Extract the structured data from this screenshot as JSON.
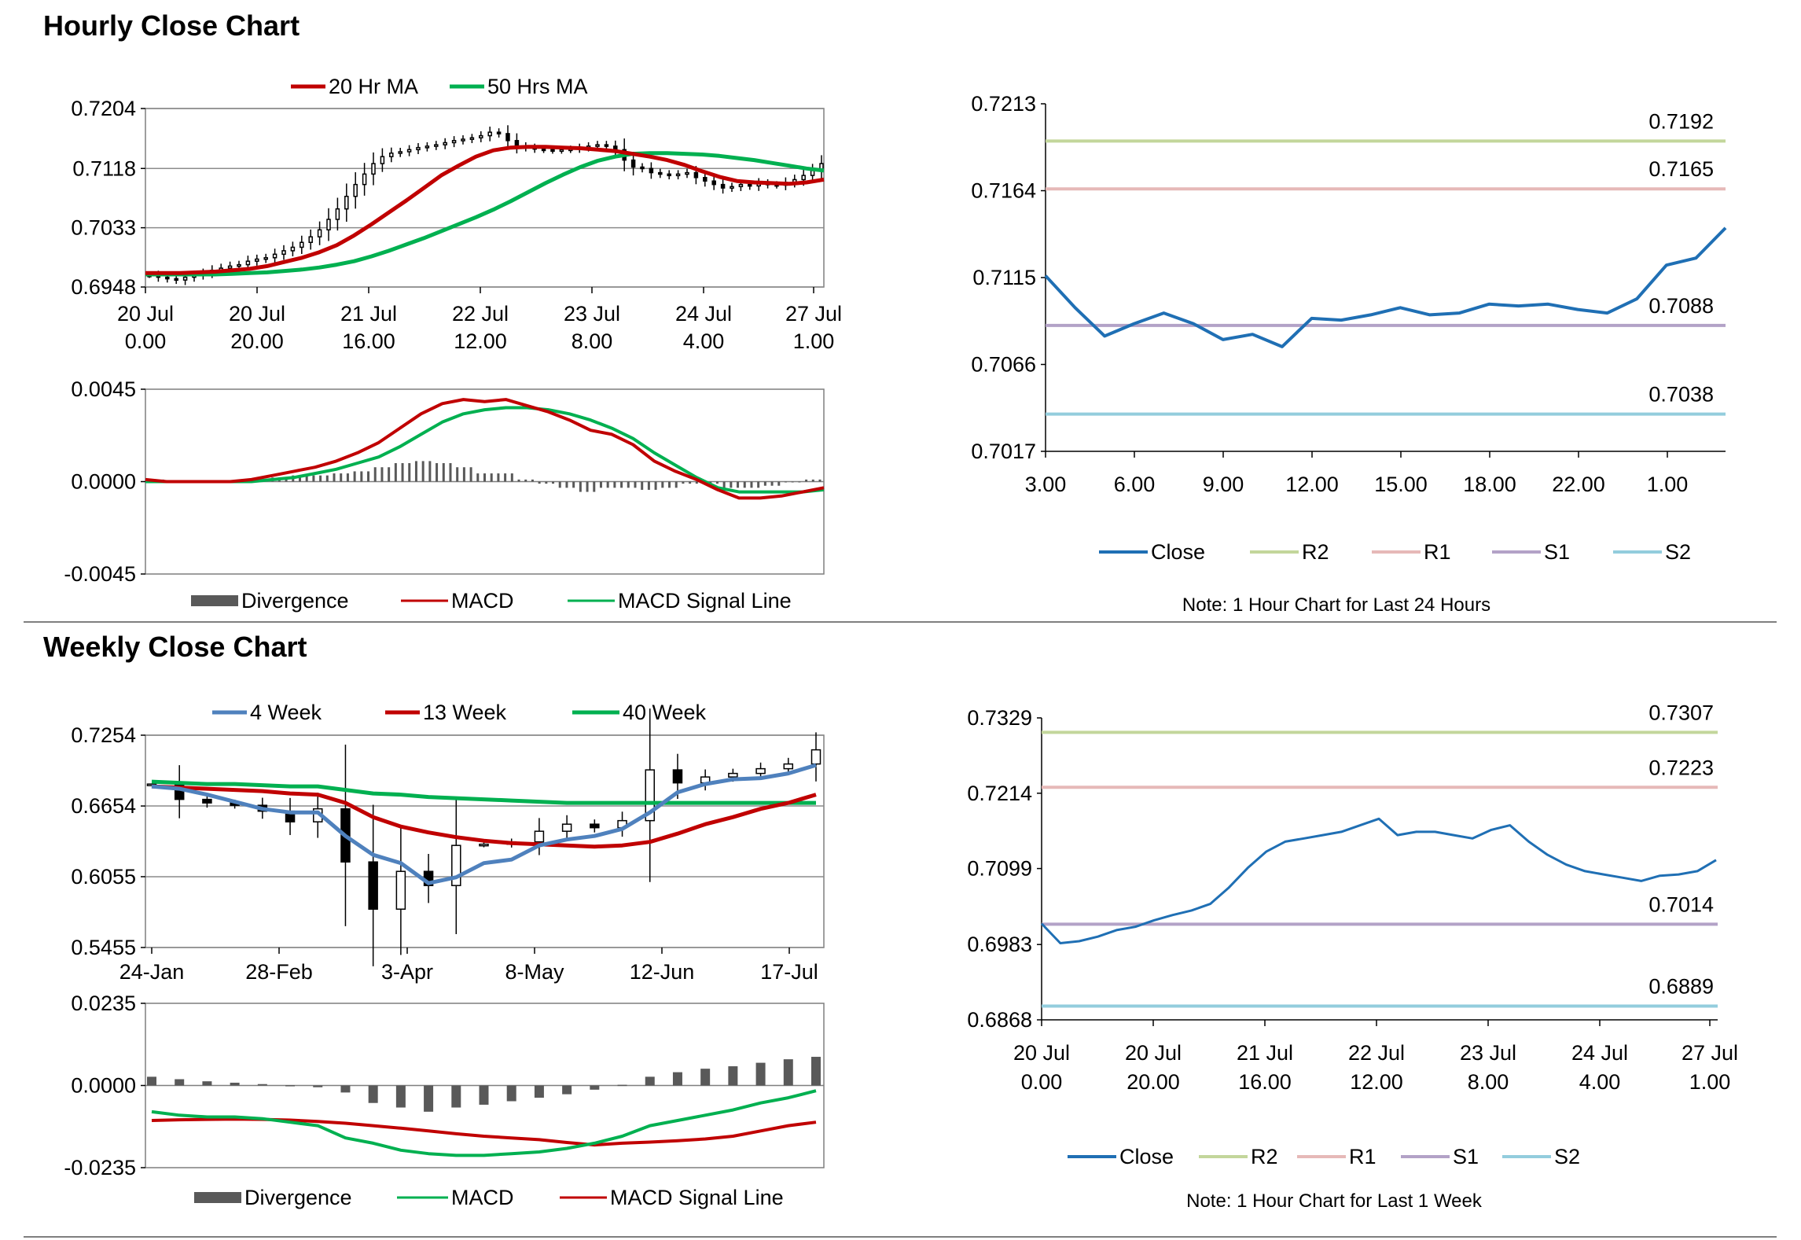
{
  "hourly_section": {
    "title": "Hourly Close Chart"
  },
  "weekly_section": {
    "title": "Weekly Close Chart"
  },
  "colors": {
    "red": "#c00000",
    "green": "#00b050",
    "blue": "#4f81bd",
    "dark_blue": "#1f6fb4",
    "gray": "#595959",
    "r2": "#c3d69b",
    "r1": "#e6b9b8",
    "s1": "#b3a2c7",
    "s2": "#93cddd"
  },
  "chart_data": [
    {
      "id": "hourly_price",
      "type": "candlestick",
      "legend": [
        "20 Hr MA",
        "50 Hrs MA"
      ],
      "y_ticks": [
        "0.7204",
        "0.7118",
        "0.7033",
        "0.6948"
      ],
      "ylim": [
        0.6948,
        0.7204
      ],
      "x_ticks": [
        [
          "20 Jul",
          "0.00"
        ],
        [
          "20 Jul",
          "20.00"
        ],
        [
          "21 Jul",
          "16.00"
        ],
        [
          "22 Jul",
          "12.00"
        ],
        [
          "23 Jul",
          "8.00"
        ],
        [
          "24 Jul",
          "4.00"
        ],
        [
          "27 Jul",
          "1.00"
        ]
      ],
      "close_series": [
        0.6965,
        0.6962,
        0.696,
        0.6958,
        0.6962,
        0.6965,
        0.6968,
        0.6972,
        0.6975,
        0.6978,
        0.698,
        0.6985,
        0.6988,
        0.699,
        0.6995,
        0.7,
        0.7005,
        0.7012,
        0.702,
        0.703,
        0.7045,
        0.706,
        0.7078,
        0.7095,
        0.711,
        0.7125,
        0.7135,
        0.714,
        0.7142,
        0.7145,
        0.7148,
        0.715,
        0.7152,
        0.7155,
        0.7158,
        0.716,
        0.7162,
        0.7165,
        0.717,
        0.7168,
        0.7158,
        0.715,
        0.7148,
        0.7146,
        0.7145,
        0.7144,
        0.7145,
        0.7146,
        0.7148,
        0.715,
        0.7152,
        0.715,
        0.7145,
        0.713,
        0.712,
        0.7118,
        0.7112,
        0.711,
        0.7108,
        0.711,
        0.7112,
        0.7105,
        0.71,
        0.7095,
        0.709,
        0.7092,
        0.7095,
        0.7093,
        0.7097,
        0.7095,
        0.7094,
        0.7098,
        0.7102,
        0.7108,
        0.7115,
        0.7125
      ],
      "ma20": [
        0.6968,
        0.6968,
        0.6968,
        0.6969,
        0.697,
        0.6972,
        0.6974,
        0.6978,
        0.6984,
        0.699,
        0.6998,
        0.7008,
        0.7022,
        0.7038,
        0.7055,
        0.7072,
        0.709,
        0.7108,
        0.7122,
        0.7135,
        0.7144,
        0.7148,
        0.7149,
        0.7149,
        0.7148,
        0.7147,
        0.7145,
        0.7143,
        0.7139,
        0.7135,
        0.713,
        0.7123,
        0.7114,
        0.7106,
        0.71,
        0.7098,
        0.7097,
        0.7096,
        0.7098,
        0.7102
      ],
      "ma50": [
        0.6966,
        0.6966,
        0.6966,
        0.6966,
        0.6966,
        0.6967,
        0.6968,
        0.6969,
        0.6971,
        0.6973,
        0.6976,
        0.698,
        0.6985,
        0.6992,
        0.7,
        0.7009,
        0.7018,
        0.7028,
        0.7038,
        0.7048,
        0.7059,
        0.7071,
        0.7084,
        0.7097,
        0.7109,
        0.712,
        0.7129,
        0.7135,
        0.7139,
        0.714,
        0.714,
        0.7139,
        0.7138,
        0.7136,
        0.7133,
        0.713,
        0.7126,
        0.7122,
        0.7118,
        0.7115
      ]
    },
    {
      "id": "hourly_macd",
      "type": "bar+line",
      "legend": [
        "Divergence",
        "MACD",
        "MACD Signal Line"
      ],
      "y_ticks": [
        "0.0045",
        "0.0000",
        "-0.0045"
      ],
      "ylim": [
        -0.0045,
        0.0045
      ],
      "macd": [
        0.0001,
        0.0,
        0.0,
        0.0,
        0.0,
        0.0001,
        0.0003,
        0.0005,
        0.0007,
        0.001,
        0.0014,
        0.0019,
        0.0026,
        0.0033,
        0.0038,
        0.004,
        0.0039,
        0.004,
        0.0037,
        0.0034,
        0.003,
        0.0025,
        0.0023,
        0.0018,
        0.001,
        0.0005,
        0.0001,
        -0.0004,
        -0.0008,
        -0.0008,
        -0.0007,
        -0.0005,
        -0.0003
      ],
      "signal": [
        0.0,
        0.0,
        0.0,
        0.0,
        0.0,
        0.0,
        0.0001,
        0.0002,
        0.0004,
        0.0006,
        0.0009,
        0.0012,
        0.0017,
        0.0023,
        0.0029,
        0.0033,
        0.0035,
        0.0036,
        0.0036,
        0.0035,
        0.0033,
        0.003,
        0.0026,
        0.0021,
        0.0014,
        0.0008,
        0.0002,
        -0.0003,
        -0.0005,
        -0.0005,
        -0.0005,
        -0.0005,
        -0.0004
      ],
      "divergence": [
        0.0001,
        0.0,
        0.0,
        0.0,
        0.0,
        0.0001,
        0.0002,
        0.0003,
        0.0003,
        0.0004,
        0.0005,
        0.0007,
        0.0009,
        0.001,
        0.0009,
        0.0007,
        0.0004,
        0.0004,
        0.0001,
        -0.0001,
        -0.0003,
        -0.0005,
        -0.0003,
        -0.0003,
        -0.0004,
        -0.0003,
        -0.0001,
        -0.0001,
        -0.0003,
        -0.0003,
        -0.0002,
        0.0,
        0.0001
      ]
    },
    {
      "id": "hourly_levels",
      "type": "line",
      "legend": [
        "Close",
        "R2",
        "R1",
        "S1",
        "S2"
      ],
      "y_ticks": [
        "0.7213",
        "0.7164",
        "0.7115",
        "0.7066",
        "0.7017"
      ],
      "ylim": [
        0.7017,
        0.7213
      ],
      "x_ticks": [
        "3.00",
        "6.00",
        "9.00",
        "12.00",
        "15.00",
        "18.00",
        "22.00",
        "1.00"
      ],
      "close": [
        0.7116,
        0.7098,
        0.7082,
        0.7089,
        0.7095,
        0.7089,
        0.708,
        0.7083,
        0.7076,
        0.7092,
        0.7091,
        0.7094,
        0.7098,
        0.7094,
        0.7095,
        0.71,
        0.7099,
        0.71,
        0.7097,
        0.7095,
        0.7103,
        0.7122,
        0.7126,
        0.7143
      ],
      "levels": {
        "R2": "0.7192",
        "R1": "0.7165",
        "S1": "0.7088",
        "S2": "0.7038"
      },
      "note": "Note: 1 Hour Chart for Last 24 Hours"
    },
    {
      "id": "weekly_price",
      "type": "candlestick",
      "legend": [
        "4 Week",
        "13 Week",
        "40 Week"
      ],
      "y_ticks": [
        "0.7254",
        "0.6654",
        "0.6055",
        "0.5455"
      ],
      "ylim": [
        0.5455,
        0.7254
      ],
      "x_ticks": [
        "24-Jan",
        "28-Feb",
        "3-Apr",
        "8-May",
        "12-Jun",
        "17-Jul"
      ],
      "close": [
        0.684,
        0.671,
        0.668,
        0.666,
        0.661,
        0.652,
        0.663,
        0.618,
        0.578,
        0.61,
        0.598,
        0.632,
        0.633,
        0.635,
        0.644,
        0.65,
        0.647,
        0.653,
        0.696,
        0.685,
        0.69,
        0.693,
        0.697,
        0.701,
        0.713
      ],
      "wk4": [
        0.682,
        0.68,
        0.675,
        0.669,
        0.663,
        0.66,
        0.66,
        0.64,
        0.624,
        0.617,
        0.6,
        0.605,
        0.617,
        0.62,
        0.632,
        0.637,
        0.64,
        0.646,
        0.66,
        0.677,
        0.684,
        0.688,
        0.689,
        0.693,
        0.7
      ],
      "wk13": [
        0.682,
        0.681,
        0.68,
        0.679,
        0.678,
        0.676,
        0.675,
        0.668,
        0.656,
        0.648,
        0.643,
        0.639,
        0.636,
        0.634,
        0.633,
        0.632,
        0.631,
        0.632,
        0.635,
        0.642,
        0.65,
        0.656,
        0.663,
        0.668,
        0.675
      ],
      "wk40": [
        0.686,
        0.685,
        0.684,
        0.684,
        0.683,
        0.682,
        0.682,
        0.679,
        0.676,
        0.675,
        0.673,
        0.672,
        0.671,
        0.67,
        0.669,
        0.668,
        0.668,
        0.668,
        0.668,
        0.668,
        0.668,
        0.668,
        0.668,
        0.668,
        0.668
      ]
    },
    {
      "id": "weekly_macd",
      "type": "bar+line",
      "legend": [
        "Divergence",
        "MACD",
        "MACD Signal Line"
      ],
      "y_ticks": [
        "0.0235",
        "0.0000",
        "-0.0235"
      ],
      "ylim": [
        -0.0235,
        0.0235
      ],
      "macd": [
        -0.0075,
        -0.0085,
        -0.009,
        -0.009,
        -0.0095,
        -0.0105,
        -0.0115,
        -0.015,
        -0.0165,
        -0.0185,
        -0.0195,
        -0.02,
        -0.02,
        -0.0195,
        -0.019,
        -0.018,
        -0.0165,
        -0.0145,
        -0.0115,
        -0.01,
        -0.0085,
        -0.007,
        -0.005,
        -0.0035,
        -0.0015
      ],
      "signal": [
        -0.01,
        -0.0098,
        -0.0097,
        -0.0096,
        -0.0097,
        -0.0099,
        -0.0103,
        -0.0108,
        -0.0115,
        -0.0122,
        -0.013,
        -0.0138,
        -0.0145,
        -0.015,
        -0.0155,
        -0.0163,
        -0.017,
        -0.0165,
        -0.0162,
        -0.0158,
        -0.0153,
        -0.0145,
        -0.013,
        -0.0115,
        -0.0105
      ],
      "divergence": [
        0.0025,
        0.0018,
        0.0012,
        0.0008,
        0.0004,
        0.0001,
        -0.0005,
        -0.002,
        -0.005,
        -0.0063,
        -0.0075,
        -0.0063,
        -0.0055,
        -0.0045,
        -0.0035,
        -0.0025,
        -0.0012,
        0.0002,
        0.0025,
        0.0038,
        0.0048,
        0.0055,
        0.0065,
        0.0075,
        0.0082
      ]
    },
    {
      "id": "weekly_levels",
      "type": "line",
      "legend": [
        "Close",
        "R2",
        "R1",
        "S1",
        "S2"
      ],
      "y_ticks": [
        "0.7329",
        "0.7214",
        "0.7099",
        "0.6983",
        "0.6868"
      ],
      "ylim": [
        0.6868,
        0.7329
      ],
      "x_ticks": [
        [
          "20 Jul",
          "0.00"
        ],
        [
          "20 Jul",
          "20.00"
        ],
        [
          "21 Jul",
          "16.00"
        ],
        [
          "22 Jul",
          "12.00"
        ],
        [
          "23 Jul",
          "8.00"
        ],
        [
          "24 Jul",
          "4.00"
        ],
        [
          "27 Jul",
          "1.00"
        ]
      ],
      "close": [
        0.7015,
        0.6985,
        0.6988,
        0.6995,
        0.7005,
        0.701,
        0.702,
        0.7028,
        0.7035,
        0.7045,
        0.707,
        0.71,
        0.7125,
        0.714,
        0.7145,
        0.715,
        0.7155,
        0.7165,
        0.7175,
        0.715,
        0.7155,
        0.7155,
        0.715,
        0.7145,
        0.7158,
        0.7165,
        0.714,
        0.712,
        0.7105,
        0.7095,
        0.709,
        0.7085,
        0.708,
        0.7088,
        0.709,
        0.7095,
        0.7112
      ],
      "levels": {
        "R2": "0.7307",
        "R1": "0.7223",
        "S1": "0.7014",
        "S2": "0.6889"
      },
      "note": "Note: 1 Hour Chart for Last 1 Week"
    }
  ]
}
